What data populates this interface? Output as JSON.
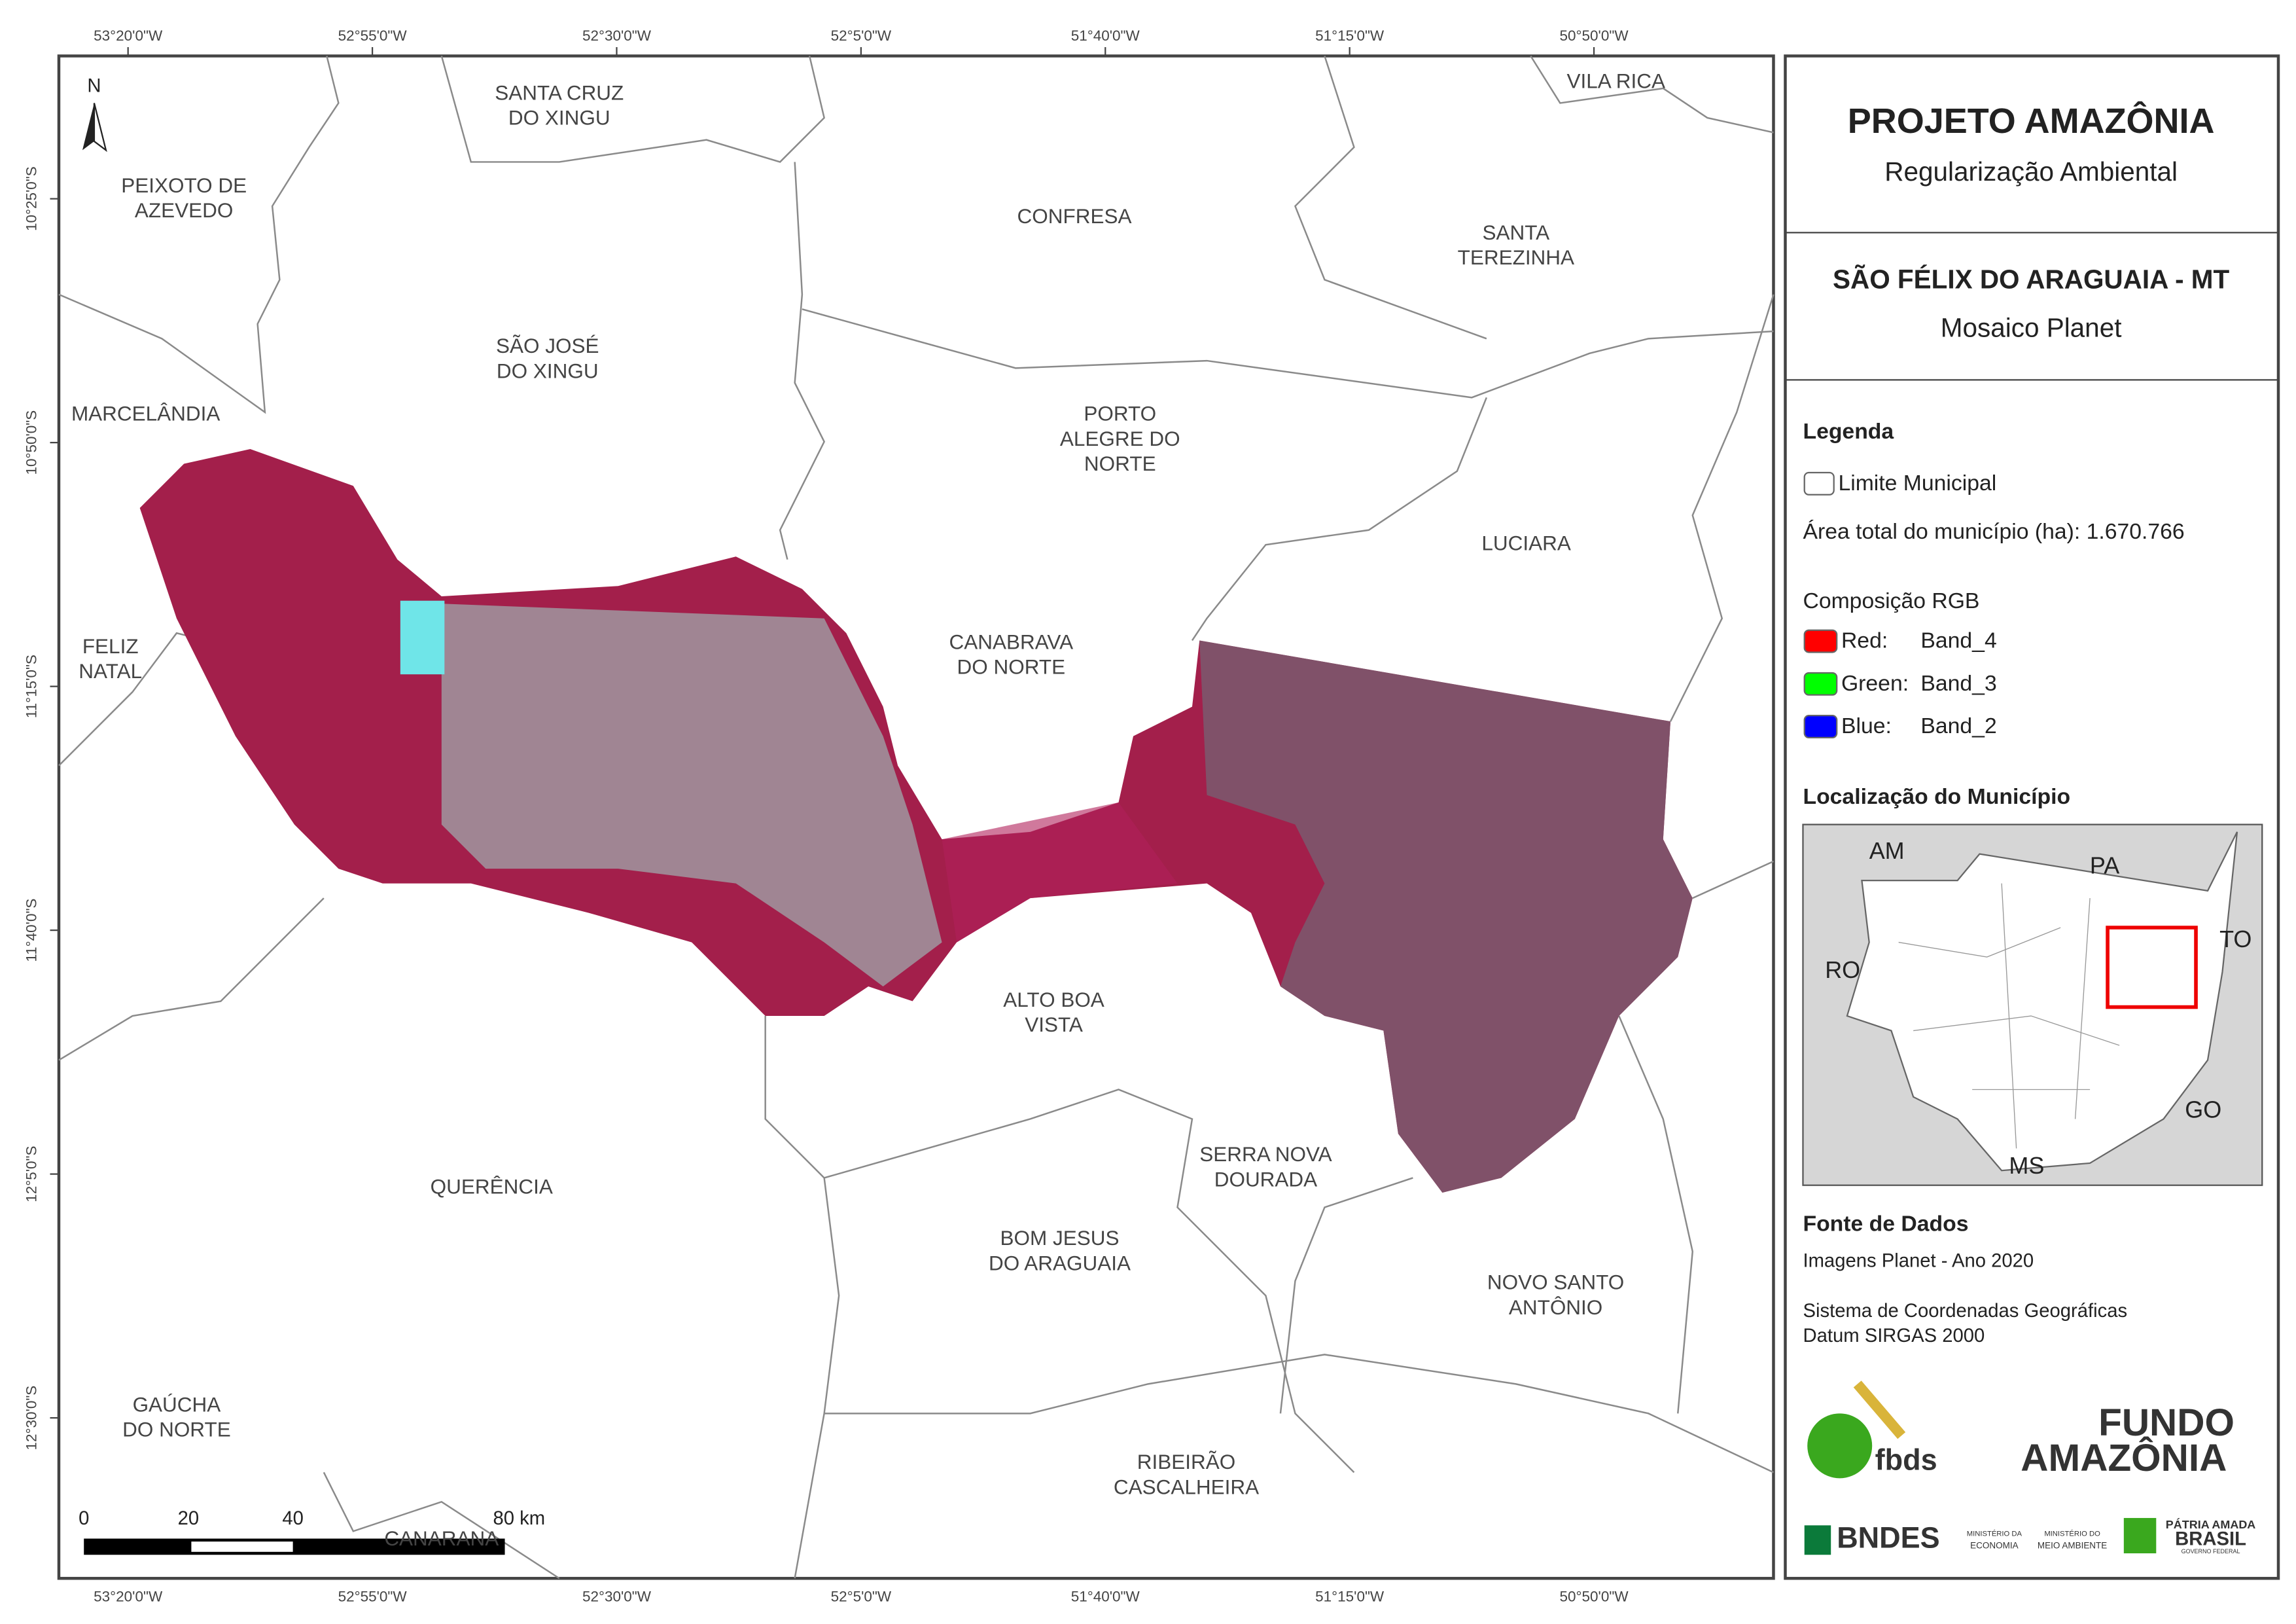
{
  "map": {
    "x_coords": [
      "53°20'0\"W",
      "52°55'0\"W",
      "52°30'0\"W",
      "52°5'0\"W",
      "51°40'0\"W",
      "51°15'0\"W",
      "50°50'0\"W"
    ],
    "y_coords": [
      "10°25'0\"S",
      "10°50'0\"S",
      "11°15'0\"S",
      "11°40'0\"S",
      "12°5'0\"S",
      "12°30'0\"S"
    ],
    "north": "N",
    "municipalities": [
      {
        "lines": [
          "SANTA CRUZ",
          "DO XINGU"
        ]
      },
      {
        "lines": [
          "PEIXOTO DE",
          "AZEVEDO"
        ]
      },
      {
        "lines": [
          "CONFRESA"
        ]
      },
      {
        "lines": [
          "SANTA",
          "TEREZINHA"
        ]
      },
      {
        "lines": [
          "VILA RICA"
        ]
      },
      {
        "lines": [
          "SÃO JOSÉ",
          "DO XINGU"
        ]
      },
      {
        "lines": [
          "MARCELÂNDIA"
        ]
      },
      {
        "lines": [
          "PORTO",
          "ALEGRE DO",
          "NORTE"
        ]
      },
      {
        "lines": [
          "LUCIARA"
        ]
      },
      {
        "lines": [
          "FELIZ",
          "NATAL"
        ]
      },
      {
        "lines": [
          "CANABRAVA",
          "DO NORTE"
        ]
      },
      {
        "lines": [
          "ALTO BOA",
          "VISTA"
        ]
      },
      {
        "lines": [
          "QUERÊNCIA"
        ]
      },
      {
        "lines": [
          "SERRA NOVA",
          "DOURADA"
        ]
      },
      {
        "lines": [
          "BOM JESUS",
          "DO ARAGUAIA"
        ]
      },
      {
        "lines": [
          "NOVO SANTO",
          "ANTÔNIO"
        ]
      },
      {
        "lines": [
          "GAÚCHA",
          "DO NORTE"
        ]
      },
      {
        "lines": [
          "RIBEIRÃO",
          "CASCALHEIRA"
        ]
      },
      {
        "lines": [
          "CANARANA"
        ]
      }
    ],
    "scale_labels": [
      "0",
      "20",
      "40",
      "80 km"
    ]
  },
  "panel": {
    "title": "PROJETO AMAZÔNIA",
    "subtitle": "Regularização Ambiental",
    "place": "SÃO FÉLIX DO ARAGUAIA - MT",
    "product": "Mosaico Planet",
    "legend_heading": "Legenda",
    "legend_item": "Limite Municipal",
    "area": "Área total do município (ha): 1.670.766",
    "rgb_heading": "Composição RGB",
    "rgb": [
      {
        "band": "Red:",
        "name": "Band_4"
      },
      {
        "band": "Green:",
        "name": "Band_3"
      },
      {
        "band": "Blue:",
        "name": "Band_2"
      }
    ],
    "location_heading": "Localização do Município",
    "states": [
      "AM",
      "PA",
      "TO",
      "RO",
      "GO",
      "MS"
    ],
    "source_heading": "Fonte de Dados",
    "source_lines": [
      "Imagens Planet - Ano 2020",
      "Sistema de Coordenadas Geográficas",
      "Datum SIRGAS 2000"
    ],
    "logos": {
      "fbds": "fbds",
      "fundo1": "FUNDO",
      "fundo2": "AMAZÔNIA",
      "bndes": "BNDES",
      "min1": "MINISTÉRIO DA",
      "min1b": "ECONOMIA",
      "min2": "MINISTÉRIO DO",
      "min2b": "MEIO AMBIENTE",
      "brasil1": "PÁTRIA AMADA",
      "brasil2": "BRASIL",
      "brasil3": "GOVERNO FEDERAL"
    }
  }
}
